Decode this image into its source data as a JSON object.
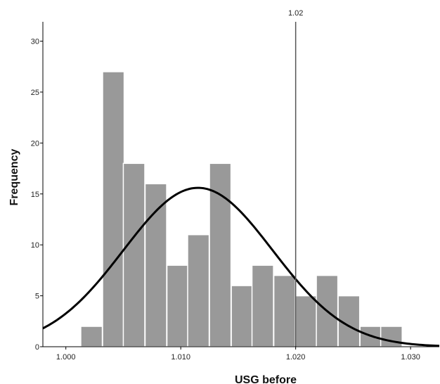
{
  "chart_data": {
    "type": "bar",
    "subtype": "histogram",
    "xlabel": "USG before",
    "ylabel": "Frequency",
    "xlim": [
      0.998,
      1.0325
    ],
    "ylim": [
      0,
      31.9
    ],
    "x_ticks": [
      1.0,
      1.01,
      1.02,
      1.03
    ],
    "x_tick_labels": [
      "1.000",
      "1.010",
      "1.020",
      "1.030"
    ],
    "y_ticks": [
      0,
      5,
      10,
      15,
      20,
      25,
      30
    ],
    "y_tick_labels": [
      "0",
      "5",
      "10",
      "15",
      "20",
      "25",
      "30"
    ],
    "bin_width": 0.00187,
    "bins": [
      {
        "start": 1.0013,
        "value": 2
      },
      {
        "start": 1.0032,
        "value": 27
      },
      {
        "start": 1.005,
        "value": 18
      },
      {
        "start": 1.0069,
        "value": 16
      },
      {
        "start": 1.0088,
        "value": 8
      },
      {
        "start": 1.0106,
        "value": 11
      },
      {
        "start": 1.0125,
        "value": 18
      },
      {
        "start": 1.0144,
        "value": 6
      },
      {
        "start": 1.0162,
        "value": 8
      },
      {
        "start": 1.0181,
        "value": 7
      },
      {
        "start": 1.02,
        "value": 5
      },
      {
        "start": 1.0218,
        "value": 7
      },
      {
        "start": 1.0237,
        "value": 5
      },
      {
        "start": 1.0256,
        "value": 2
      },
      {
        "start": 1.0274,
        "value": 2
      }
    ],
    "normal_curve": {
      "mean": 1.0115,
      "sd": 0.0065,
      "peak": 15.6
    },
    "reference_line": {
      "x": 1.02,
      "label": "1.02"
    },
    "grid": false,
    "legend": "none",
    "colors": {
      "bar": "#999999",
      "bar_edge": "#ffffff",
      "curve": "#000000",
      "reference_line": "#555555",
      "axis": "#000000"
    }
  }
}
